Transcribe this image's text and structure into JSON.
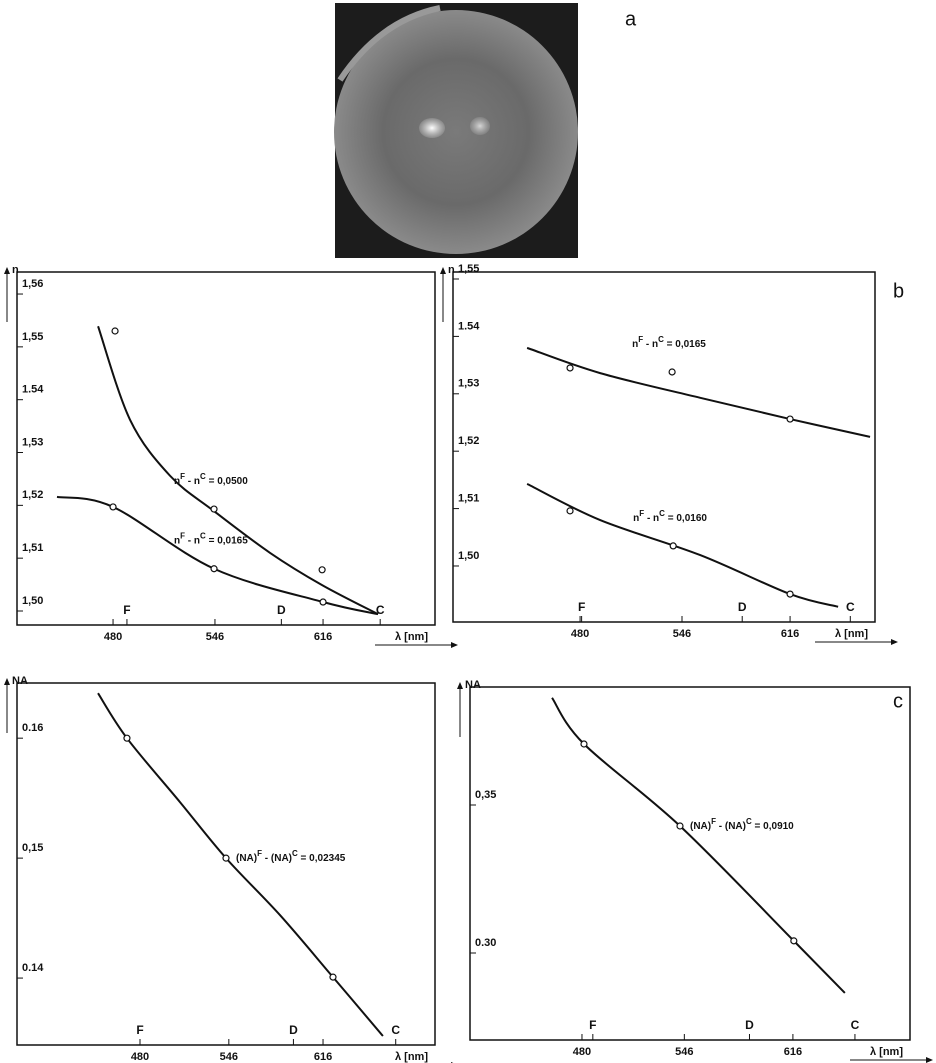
{
  "figure_labels": [
    "a",
    "b",
    "c"
  ],
  "chart_data": [
    {
      "type": "line",
      "y_label": "n",
      "x_label": "λ [nm]",
      "xlim": [
        417.8,
        688.5
      ],
      "ylim": [
        1.49735,
        1.56417
      ],
      "xticks": [
        480,
        546,
        616
      ],
      "yticks": [
        {
          "value": 1.56,
          "label": "1,56"
        },
        {
          "value": 1.55,
          "label": "1,55"
        },
        1.54,
        {
          "value": 1.53,
          "label": "1,53"
        },
        {
          "value": 1.52,
          "label": "1,52"
        },
        {
          "value": 1.51,
          "label": "1,51"
        },
        {
          "value": 1.5,
          "label": "1,50"
        }
      ],
      "markers": [
        {
          "label": "F",
          "x": 489
        },
        {
          "label": "D",
          "x": 589
        },
        {
          "label": "C",
          "x": 653
        }
      ],
      "series": [
        {
          "annotation": [
            "n",
            "F",
            " - n",
            "C",
            " = 0,0500"
          ],
          "color": "#111",
          "x": [
            481.3,
            545.4,
            615.4
          ],
          "values": [
            1.553,
            1.5193,
            1.5078
          ],
          "fit_x": [
            470.3,
            491.0,
            516.9,
            545.4,
            581.7,
            615.4,
            651.6
          ],
          "fit_values": [
            1.5539,
            1.5362,
            1.5256,
            1.5189,
            1.511,
            1.5049,
            1.4994
          ]
        },
        {
          "annotation": [
            "n",
            "F",
            " - n",
            "C",
            " = 0,0165"
          ],
          "color": "#111",
          "x": [
            480,
            545.4,
            616
          ],
          "values": [
            1.5197,
            1.508,
            1.5017
          ],
          "fit_x": [
            443.7,
            480,
            545.4,
            616,
            651.6
          ],
          "fit_values": [
            1.5216,
            1.5197,
            1.508,
            1.5017,
            1.4994
          ]
        }
      ]
    },
    {
      "type": "line",
      "y_label": "n",
      "x_label": "λ [nm]",
      "xlim": [
        397.7,
        671
      ],
      "ylim": [
        1.49024,
        1.55122
      ],
      "xticks": [
        480,
        546,
        616
      ],
      "yticks": [
        {
          "value": 1.55,
          "label": "1,55"
        },
        1.54,
        {
          "value": 1.53,
          "label": "1,53"
        },
        {
          "value": 1.52,
          "label": "1,52"
        },
        {
          "value": 1.51,
          "label": "1,51"
        },
        {
          "value": 1.5,
          "label": "1,50"
        }
      ],
      "markers": [
        {
          "label": "F",
          "x": 481
        },
        {
          "label": "D",
          "x": 585
        },
        {
          "label": "C",
          "x": 655
        }
      ],
      "series": [
        {
          "annotation": [
            "n",
            "F",
            " - n",
            "C",
            " = 0,0165"
          ],
          "color": "#111",
          "x": [
            473.5,
            539.6,
            616
          ],
          "values": [
            1.5345,
            1.5338,
            1.5256
          ],
          "fit_x": [
            445.7,
            493,
            557.8,
            616,
            667.8
          ],
          "fit_values": [
            1.538,
            1.5336,
            1.5293,
            1.5256,
            1.5225
          ]
        },
        {
          "annotation": [
            "n",
            "F",
            " - n",
            "C",
            " = 0,0160"
          ],
          "color": "#111",
          "x": [
            473.5,
            540.3,
            616
          ],
          "values": [
            1.5096,
            1.5035,
            1.4951
          ],
          "fit_x": [
            445.7,
            493,
            557.8,
            616,
            647.1
          ],
          "fit_values": [
            1.5143,
            1.508,
            1.5019,
            1.4951,
            1.4929
          ]
        }
      ]
    },
    {
      "type": "line",
      "y_label": "NA",
      "x_label": "λ [nm]",
      "xlim": [
        388.6,
        699.2
      ],
      "ylim": [
        0.13442,
        0.1646
      ],
      "xticks": [
        480,
        546,
        616
      ],
      "yticks": [
        0.16,
        {
          "value": 0.15,
          "label": "0,15"
        },
        0.14
      ],
      "markers": [
        {
          "label": "F",
          "x": 480
        },
        {
          "label": "D",
          "x": 594
        },
        {
          "label": "C",
          "x": 670
        }
      ],
      "series": [
        {
          "annotation": [
            "(NA)",
            "F",
            " - (NA)",
            "C",
            " = 0,02345"
          ],
          "color": "#111",
          "x": [
            470.3,
            543.9,
            623.4
          ],
          "values": [
            0.16,
            0.15,
            0.14008
          ],
          "fit_x": [
            448.8,
            470.3,
            509.7,
            543.9,
            584.0,
            623.4,
            660.5
          ],
          "fit_values": [
            0.16375,
            0.16,
            0.15467,
            0.15,
            0.14525,
            0.14008,
            0.13517
          ]
        }
      ]
    },
    {
      "type": "line",
      "y_label": "NA",
      "x_label": "λ [nm]",
      "xlim": [
        407.8,
        691.5
      ],
      "ylim": [
        0.27061,
        0.38986
      ],
      "xticks": [
        480,
        546,
        616
      ],
      "yticks": [
        {
          "value": 0.35,
          "label": "0,35"
        },
        {
          "value": 0.3,
          "label": "0.30"
        }
      ],
      "markers": [
        {
          "label": "F",
          "x": 487
        },
        {
          "label": "D",
          "x": 588
        },
        {
          "label": "C",
          "x": 656
        }
      ],
      "series": [
        {
          "annotation": [
            "(NA)",
            "F",
            " - (NA)",
            "C",
            " = 0,0910"
          ],
          "color": "#111",
          "x": [
            481.3,
            543.2,
            616.6
          ],
          "values": [
            0.3706,
            0.3429,
            0.3041
          ],
          "fit_x": [
            460.7,
            481.3,
            543.2,
            616.6,
            649.5
          ],
          "fit_values": [
            0.3862,
            0.3706,
            0.3429,
            0.3041,
            0.2865
          ]
        }
      ]
    }
  ]
}
